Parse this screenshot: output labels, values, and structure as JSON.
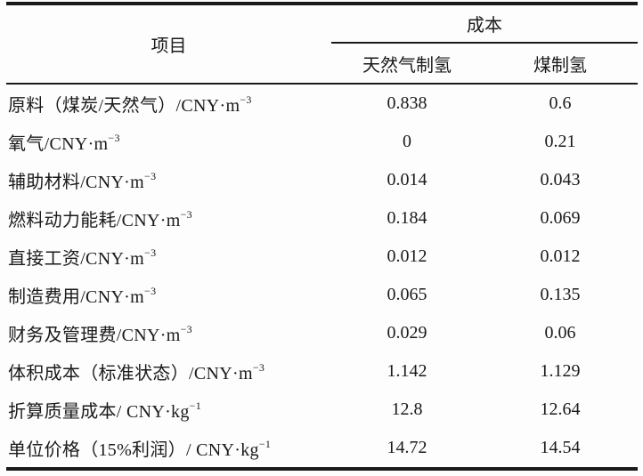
{
  "table": {
    "headers": {
      "item": "项目",
      "cost_group": "成本",
      "sub_columns": [
        "天然气制氢",
        "煤制氢"
      ]
    },
    "rows": [
      {
        "label": "原料（煤炭/天然气）/CNY·m",
        "sup": "−3",
        "values": [
          "0.838",
          "0.6"
        ]
      },
      {
        "label": "氧气/CNY·m",
        "sup": "−3",
        "values": [
          "0",
          "0.21"
        ]
      },
      {
        "label": "辅助材料/CNY·m",
        "sup": "−3",
        "values": [
          "0.014",
          "0.043"
        ]
      },
      {
        "label": "燃料动力能耗/CNY·m",
        "sup": "−3",
        "values": [
          "0.184",
          "0.069"
        ]
      },
      {
        "label": "直接工资/CNY·m",
        "sup": "−3",
        "values": [
          "0.012",
          "0.012"
        ]
      },
      {
        "label": "制造费用/CNY·m",
        "sup": "−3",
        "values": [
          "0.065",
          "0.135"
        ]
      },
      {
        "label": "财务及管理费/CNY·m",
        "sup": "−3",
        "values": [
          "0.029",
          "0.06"
        ]
      },
      {
        "label": "体积成本（标准状态）/CNY·m",
        "sup": "−3",
        "values": [
          "1.142",
          "1.129"
        ]
      },
      {
        "label": "折算质量成本/ CNY·kg",
        "sup": "−1",
        "values": [
          "12.8",
          "12.64"
        ]
      },
      {
        "label": "单位价格（15%利润）/ CNY·kg",
        "sup": "−1",
        "values": [
          "14.72",
          "14.54"
        ]
      }
    ],
    "colors": {
      "text": "#1a1a1a",
      "rule": "#1a1a1a",
      "background": "#fdfdfd"
    }
  },
  "chart_data": {
    "type": "table",
    "title": "",
    "columns": [
      "项目",
      "成本 天然气制氢",
      "成本 煤制氢"
    ],
    "rows": [
      [
        "原料（煤炭/天然气）/CNY·m−3",
        0.838,
        0.6
      ],
      [
        "氧气/CNY·m−3",
        0,
        0.21
      ],
      [
        "辅助材料/CNY·m−3",
        0.014,
        0.043
      ],
      [
        "燃料动力能耗/CNY·m−3",
        0.184,
        0.069
      ],
      [
        "直接工资/CNY·m−3",
        0.012,
        0.012
      ],
      [
        "制造费用/CNY·m−3",
        0.065,
        0.135
      ],
      [
        "财务及管理费/CNY·m−3",
        0.029,
        0.06
      ],
      [
        "体积成本（标准状态）/CNY·m−3",
        1.142,
        1.129
      ],
      [
        "折算质量成本/ CNY·kg−1",
        12.8,
        12.64
      ],
      [
        "单位价格（15%利润）/ CNY·kg−1",
        14.72,
        14.54
      ]
    ]
  }
}
